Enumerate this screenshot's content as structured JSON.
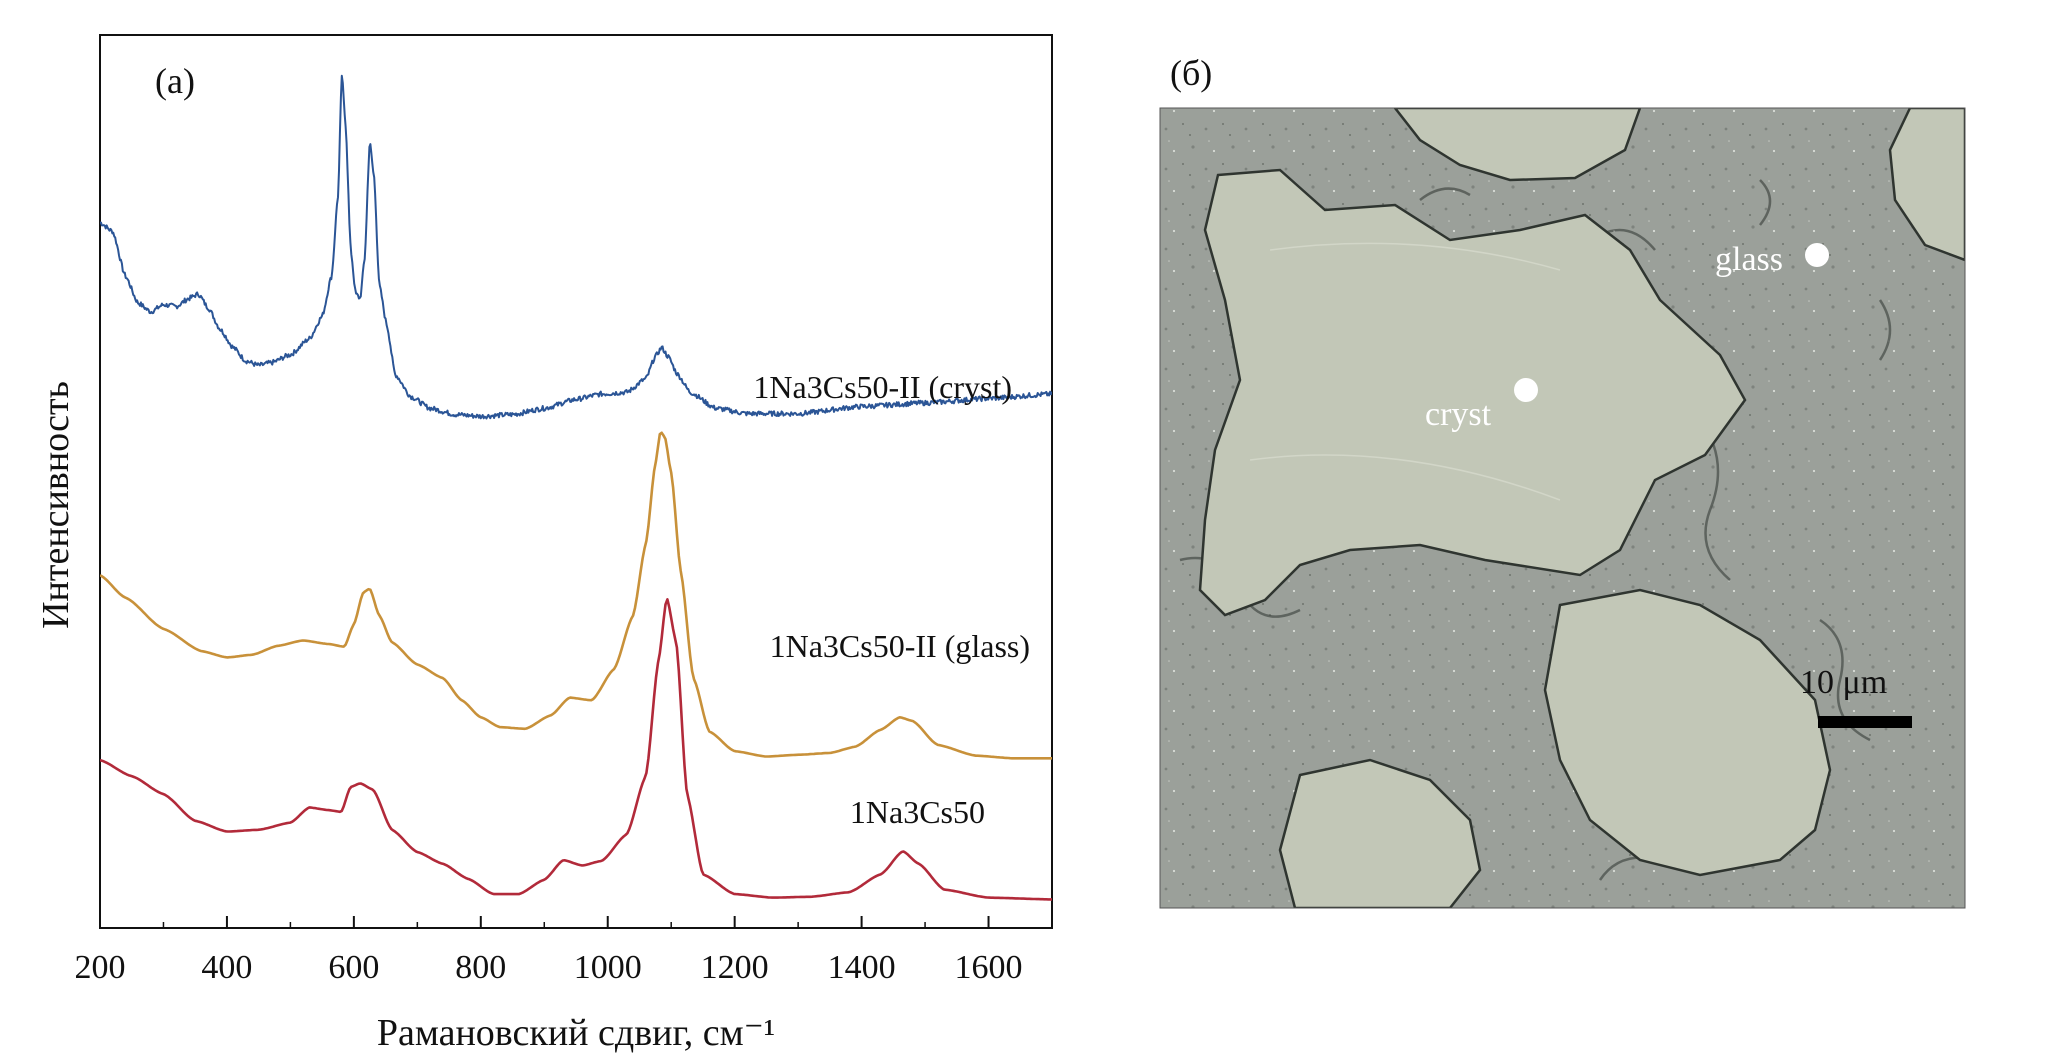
{
  "panel_a": {
    "label": "(a)",
    "chart_data": {
      "type": "line",
      "xlabel": "Рамановский сдвиг, см⁻¹",
      "ylabel": "Интенсивность",
      "xlim": [
        200,
        1700
      ],
      "xticks": [
        200,
        400,
        600,
        800,
        1000,
        1200,
        1400,
        1600
      ],
      "ylim": [
        0,
        100
      ],
      "y_ticks_shown": false,
      "grid": false,
      "legend": "inline labels beside each curve",
      "series": [
        {
          "name": "1Na3Cs50-II (cryst)",
          "color": "#2b5596",
          "noisy": true,
          "points": [
            [
              200,
              79
            ],
            [
              220,
              78
            ],
            [
              240,
              73
            ],
            [
              260,
              70
            ],
            [
              280,
              69
            ],
            [
              300,
              69.8
            ],
            [
              320,
              69.6
            ],
            [
              340,
              70.5
            ],
            [
              355,
              71
            ],
            [
              370,
              69.5
            ],
            [
              390,
              67
            ],
            [
              410,
              65
            ],
            [
              430,
              63.5
            ],
            [
              450,
              63
            ],
            [
              470,
              63.3
            ],
            [
              500,
              64.2
            ],
            [
              530,
              66
            ],
            [
              550,
              68.5
            ],
            [
              565,
              73
            ],
            [
              575,
              82
            ],
            [
              581,
              95.5
            ],
            [
              587,
              90
            ],
            [
              595,
              76
            ],
            [
              603,
              71
            ],
            [
              610,
              70.5
            ],
            [
              617,
              75
            ],
            [
              625,
              88
            ],
            [
              632,
              84
            ],
            [
              640,
              72
            ],
            [
              652,
              67.5
            ],
            [
              665,
              62
            ],
            [
              690,
              59.5
            ],
            [
              720,
              58.2
            ],
            [
              760,
              57.5
            ],
            [
              800,
              57.3
            ],
            [
              850,
              57.5
            ],
            [
              900,
              58.2
            ],
            [
              950,
              59.2
            ],
            [
              990,
              59.8
            ],
            [
              1030,
              60
            ],
            [
              1060,
              61.5
            ],
            [
              1075,
              64
            ],
            [
              1085,
              65
            ],
            [
              1095,
              64
            ],
            [
              1110,
              62
            ],
            [
              1130,
              60
            ],
            [
              1170,
              58.2
            ],
            [
              1220,
              57.6
            ],
            [
              1300,
              57.6
            ],
            [
              1400,
              58.4
            ],
            [
              1500,
              58.8
            ],
            [
              1600,
              59.3
            ],
            [
              1700,
              59.8
            ]
          ]
        },
        {
          "name": "1Na3Cs50-II (glass)",
          "color": "#c8913a",
          "noisy": false,
          "points": [
            [
              200,
              39.5
            ],
            [
              240,
              37
            ],
            [
              300,
              33.5
            ],
            [
              360,
              31
            ],
            [
              400,
              30.3
            ],
            [
              440,
              30.6
            ],
            [
              480,
              31.6
            ],
            [
              520,
              32.2
            ],
            [
              560,
              31.8
            ],
            [
              585,
              31.5
            ],
            [
              600,
              34
            ],
            [
              615,
              37.6
            ],
            [
              625,
              38
            ],
            [
              640,
              35
            ],
            [
              660,
              32
            ],
            [
              700,
              29.5
            ],
            [
              740,
              28
            ],
            [
              770,
              25.5
            ],
            [
              800,
              23.6
            ],
            [
              830,
              22.5
            ],
            [
              870,
              22.3
            ],
            [
              910,
              23.8
            ],
            [
              940,
              25.8
            ],
            [
              975,
              25.5
            ],
            [
              1010,
              29
            ],
            [
              1040,
              35
            ],
            [
              1060,
              43
            ],
            [
              1075,
              52
            ],
            [
              1083,
              55.6
            ],
            [
              1090,
              55
            ],
            [
              1100,
              51
            ],
            [
              1115,
              40
            ],
            [
              1135,
              28
            ],
            [
              1160,
              22
            ],
            [
              1200,
              19.8
            ],
            [
              1250,
              19.2
            ],
            [
              1300,
              19.4
            ],
            [
              1350,
              19.6
            ],
            [
              1390,
              20.3
            ],
            [
              1430,
              22.2
            ],
            [
              1460,
              23.6
            ],
            [
              1480,
              23.2
            ],
            [
              1520,
              20.5
            ],
            [
              1580,
              19.3
            ],
            [
              1640,
              19
            ],
            [
              1700,
              19
            ]
          ]
        },
        {
          "name": "1Na3Cs50",
          "color": "#b22a3a",
          "noisy": false,
          "points": [
            [
              200,
              18.8
            ],
            [
              250,
              17
            ],
            [
              300,
              15
            ],
            [
              350,
              12
            ],
            [
              400,
              10.8
            ],
            [
              450,
              11
            ],
            [
              500,
              11.8
            ],
            [
              530,
              13.5
            ],
            [
              560,
              13.2
            ],
            [
              580,
              13
            ],
            [
              595,
              15.8
            ],
            [
              610,
              16.2
            ],
            [
              630,
              15.5
            ],
            [
              660,
              11
            ],
            [
              700,
              8.5
            ],
            [
              740,
              7.2
            ],
            [
              780,
              5.5
            ],
            [
              820,
              3.8
            ],
            [
              860,
              3.8
            ],
            [
              900,
              5.4
            ],
            [
              930,
              7.6
            ],
            [
              960,
              7
            ],
            [
              990,
              7.5
            ],
            [
              1030,
              10.5
            ],
            [
              1060,
              17
            ],
            [
              1080,
              30
            ],
            [
              1093,
              37
            ],
            [
              1108,
              32
            ],
            [
              1125,
              15
            ],
            [
              1150,
              6
            ],
            [
              1200,
              3.8
            ],
            [
              1260,
              3.4
            ],
            [
              1320,
              3.5
            ],
            [
              1380,
              4
            ],
            [
              1430,
              6
            ],
            [
              1465,
              8.6
            ],
            [
              1490,
              7.2
            ],
            [
              1530,
              4.3
            ],
            [
              1600,
              3.4
            ],
            [
              1700,
              3.2
            ]
          ]
        }
      ]
    }
  },
  "panel_b": {
    "label": "(б)",
    "points": [
      {
        "label": "cryst"
      },
      {
        "label": "glass"
      }
    ],
    "scale_bar": {
      "label": "10 μm"
    }
  }
}
